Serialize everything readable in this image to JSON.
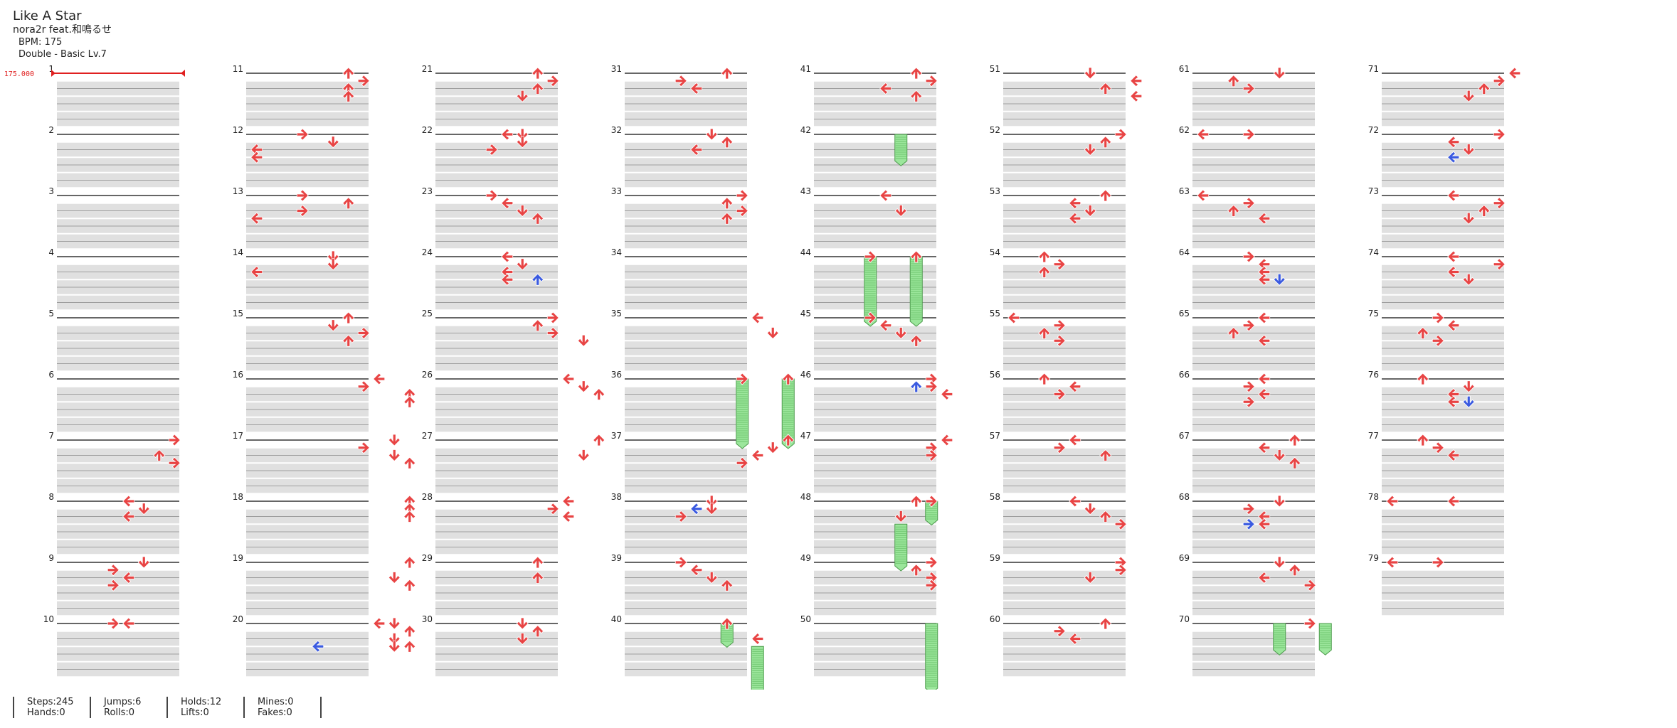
{
  "song": {
    "title": "Like A Star",
    "artist": "nora2r feat.和鳴るせ",
    "bpm_label": "BPM: 175",
    "difficulty_label": "Double - Basic Lv.7"
  },
  "chart_data": {
    "type": "dance-step-chart",
    "mode": "Double",
    "difficulty": "Basic",
    "level": 7,
    "bpm": 175,
    "bpm_marker_label": "175.000",
    "measure_count": 79,
    "measures_per_column": 10,
    "columns": 8,
    "lanes": [
      "P1-left",
      "P1-down",
      "P1-up",
      "P1-right",
      "P2-left",
      "P2-down",
      "P2-up",
      "P2-right"
    ],
    "colors": {
      "quarter": "#e84444",
      "eighth": "#3a5ae0",
      "hold": "#9be69b",
      "bpm_marker": "#e02020",
      "row_shade": "#e0e0e0"
    },
    "notes": [
      [
        7,
        0,
        7
      ],
      [
        7,
        0.25,
        6
      ],
      [
        7,
        0.375,
        7
      ],
      [
        8,
        0,
        4
      ],
      [
        8,
        0.125,
        5
      ],
      [
        8,
        0.25,
        4
      ],
      [
        9,
        0,
        5
      ],
      [
        9,
        0.125,
        3
      ],
      [
        9,
        0.25,
        4
      ],
      [
        9,
        0.375,
        3
      ],
      [
        10,
        0,
        3
      ],
      [
        10,
        0,
        4
      ],
      [
        11,
        0,
        6
      ],
      [
        11,
        0.125,
        7
      ],
      [
        11,
        0.25,
        6
      ],
      [
        11,
        0.375,
        6
      ],
      [
        12,
        0,
        3
      ],
      [
        12,
        0.125,
        5
      ],
      [
        12,
        0.25,
        0
      ],
      [
        12,
        0.375,
        0
      ],
      [
        13,
        0,
        3
      ],
      [
        13,
        0.125,
        6
      ],
      [
        13,
        0.25,
        3
      ],
      [
        13,
        0.375,
        0
      ],
      [
        14,
        0,
        5
      ],
      [
        14,
        0.125,
        5
      ],
      [
        14,
        0.25,
        0
      ],
      [
        15,
        0,
        6
      ],
      [
        15,
        0.125,
        5
      ],
      [
        15,
        0.25,
        7
      ],
      [
        15,
        0.375,
        6
      ],
      [
        16,
        0,
        8
      ],
      [
        16,
        0.125,
        7
      ],
      [
        16,
        0.25,
        10
      ],
      [
        16,
        0.375,
        10
      ],
      [
        17,
        0,
        9
      ],
      [
        17,
        0.125,
        7
      ],
      [
        17,
        0.25,
        9
      ],
      [
        17,
        0.375,
        10
      ],
      [
        18,
        0,
        10
      ],
      [
        18,
        0.125,
        10
      ],
      [
        18,
        0.25,
        10
      ],
      [
        19,
        0,
        10
      ],
      [
        19,
        0.25,
        9
      ],
      [
        19,
        0.375,
        10
      ],
      [
        20,
        0,
        8
      ],
      [
        20,
        0,
        9
      ],
      [
        20,
        0.125,
        10
      ],
      [
        20,
        0.25,
        9
      ],
      [
        20,
        0.375,
        9
      ],
      [
        20,
        0.375,
        10
      ],
      [
        21,
        0,
        6
      ],
      [
        21,
        0.125,
        7
      ],
      [
        21,
        0.25,
        6
      ],
      [
        21,
        0.375,
        5
      ],
      [
        22,
        0,
        5
      ],
      [
        22,
        0,
        4
      ],
      [
        22,
        0.125,
        5
      ],
      [
        22,
        0.25,
        3
      ],
      [
        23,
        0,
        3
      ],
      [
        23,
        0.125,
        4
      ],
      [
        23,
        0.25,
        5
      ],
      [
        23,
        0.375,
        6
      ],
      [
        24,
        0,
        4
      ],
      [
        24,
        0.125,
        5
      ],
      [
        24,
        0.25,
        4
      ],
      [
        24,
        0.375,
        4
      ],
      [
        25,
        0,
        7
      ],
      [
        25,
        0.125,
        6
      ],
      [
        25,
        0.25,
        7
      ],
      [
        25,
        0.375,
        9
      ],
      [
        26,
        0,
        8
      ],
      [
        26,
        0.125,
        9
      ],
      [
        26,
        0.25,
        10
      ],
      [
        27,
        0,
        10
      ],
      [
        27,
        0.25,
        9
      ],
      [
        28,
        0,
        8
      ],
      [
        28,
        0.125,
        7
      ],
      [
        28,
        0.25,
        8
      ],
      [
        29,
        0,
        6
      ],
      [
        29,
        0.25,
        6
      ],
      [
        30,
        0,
        5
      ],
      [
        30,
        0.125,
        6
      ],
      [
        30,
        0.25,
        5
      ],
      [
        31,
        0,
        6
      ],
      [
        31,
        0.125,
        3
      ],
      [
        31,
        0.25,
        4
      ],
      [
        32,
        0,
        5
      ],
      [
        32,
        0.125,
        6
      ],
      [
        32,
        0.25,
        4
      ],
      [
        33,
        0,
        7
      ],
      [
        33,
        0.125,
        6
      ],
      [
        33,
        0.25,
        7
      ],
      [
        33,
        0.375,
        6
      ],
      [
        35,
        0,
        8
      ],
      [
        35,
        0.25,
        9
      ],
      [
        36,
        0,
        7
      ],
      [
        36,
        0,
        10
      ],
      [
        37,
        0,
        10
      ],
      [
        37,
        0.125,
        9
      ],
      [
        37,
        0.25,
        8
      ],
      [
        37,
        0.375,
        7
      ],
      [
        38,
        0,
        5
      ],
      [
        38,
        0.125,
        5
      ],
      [
        38,
        0.25,
        3
      ],
      [
        39,
        0,
        3
      ],
      [
        39,
        0.125,
        4
      ],
      [
        39,
        0.25,
        5
      ],
      [
        39,
        0.375,
        6
      ],
      [
        40,
        0,
        6
      ],
      [
        40,
        0.25,
        8
      ],
      [
        41,
        0,
        6
      ],
      [
        41,
        0.125,
        7
      ],
      [
        41,
        0.25,
        4
      ],
      [
        41,
        0.375,
        6
      ],
      [
        43,
        0,
        4
      ],
      [
        43,
        0.25,
        5
      ],
      [
        44,
        0,
        3
      ],
      [
        44,
        0,
        6
      ],
      [
        45,
        0,
        3
      ],
      [
        45,
        0.125,
        4
      ],
      [
        45,
        0.25,
        5
      ],
      [
        45,
        0.375,
        6
      ],
      [
        46,
        0,
        7
      ],
      [
        46,
        0.125,
        7
      ],
      [
        46,
        0.25,
        8
      ],
      [
        47,
        0,
        8
      ],
      [
        47,
        0.125,
        7
      ],
      [
        47,
        0.25,
        7
      ],
      [
        48,
        0,
        6
      ],
      [
        48,
        0,
        7
      ],
      [
        48,
        0.25,
        5
      ],
      [
        49,
        0,
        7
      ],
      [
        49,
        0.125,
        6
      ],
      [
        49,
        0.25,
        7
      ],
      [
        49,
        0.375,
        7
      ],
      [
        51,
        0,
        5
      ],
      [
        51,
        0.125,
        8
      ],
      [
        51,
        0.25,
        6
      ],
      [
        51,
        0.375,
        8
      ],
      [
        52,
        0,
        7
      ],
      [
        52,
        0.125,
        6
      ],
      [
        52,
        0.25,
        5
      ],
      [
        53,
        0,
        6
      ],
      [
        53,
        0.125,
        4
      ],
      [
        53,
        0.25,
        5
      ],
      [
        53,
        0.375,
        4
      ],
      [
        54,
        0,
        2
      ],
      [
        54,
        0.125,
        3
      ],
      [
        54,
        0.25,
        2
      ],
      [
        55,
        0,
        0
      ],
      [
        55,
        0.125,
        3
      ],
      [
        55,
        0.25,
        2
      ],
      [
        55,
        0.375,
        3
      ],
      [
        56,
        0,
        2
      ],
      [
        56,
        0.125,
        4
      ],
      [
        56,
        0.25,
        3
      ],
      [
        57,
        0,
        4
      ],
      [
        57,
        0.125,
        3
      ],
      [
        57,
        0.25,
        6
      ],
      [
        58,
        0,
        4
      ],
      [
        58,
        0.125,
        5
      ],
      [
        58,
        0.25,
        6
      ],
      [
        58,
        0.375,
        7
      ],
      [
        59,
        0,
        7
      ],
      [
        59,
        0.125,
        7
      ],
      [
        59,
        0.25,
        5
      ],
      [
        60,
        0,
        6
      ],
      [
        60,
        0.125,
        3
      ],
      [
        60,
        0.25,
        4
      ],
      [
        61,
        0,
        5
      ],
      [
        61,
        0.125,
        2
      ],
      [
        61,
        0.25,
        3
      ],
      [
        62,
        0,
        0
      ],
      [
        62,
        0,
        0
      ],
      [
        62,
        0,
        3
      ],
      [
        63,
        0,
        0
      ],
      [
        63,
        0.125,
        3
      ],
      [
        63,
        0.25,
        2
      ],
      [
        63,
        0.375,
        4
      ],
      [
        64,
        0,
        3
      ],
      [
        64,
        0.125,
        4
      ],
      [
        64,
        0.25,
        4
      ],
      [
        64,
        0.375,
        4
      ],
      [
        65,
        0,
        4
      ],
      [
        65,
        0.125,
        3
      ],
      [
        65,
        0.25,
        2
      ],
      [
        65,
        0.375,
        4
      ],
      [
        66,
        0,
        4
      ],
      [
        66,
        0.125,
        3
      ],
      [
        66,
        0.25,
        4
      ],
      [
        66,
        0.375,
        3
      ],
      [
        67,
        0,
        6
      ],
      [
        67,
        0.125,
        4
      ],
      [
        67,
        0.25,
        5
      ],
      [
        67,
        0.375,
        6
      ],
      [
        68,
        0,
        5
      ],
      [
        68,
        0.125,
        3
      ],
      [
        68,
        0.25,
        4
      ],
      [
        68,
        0.375,
        4
      ],
      [
        69,
        0,
        5
      ],
      [
        69,
        0.125,
        6
      ],
      [
        69,
        0.25,
        4
      ],
      [
        69,
        0.375,
        7
      ],
      [
        70,
        0,
        7
      ],
      [
        71,
        0,
        8
      ],
      [
        71,
        0.125,
        7
      ],
      [
        71,
        0.25,
        6
      ],
      [
        71,
        0.375,
        5
      ],
      [
        72,
        0,
        7
      ],
      [
        72,
        0.125,
        4
      ],
      [
        72,
        0.25,
        5
      ],
      [
        72,
        0.375,
        4
      ],
      [
        73,
        0,
        4
      ],
      [
        73,
        0.125,
        7
      ],
      [
        73,
        0.25,
        6
      ],
      [
        73,
        0.375,
        5
      ],
      [
        74,
        0,
        4
      ],
      [
        74,
        0.125,
        7
      ],
      [
        74,
        0.25,
        4
      ],
      [
        74,
        0.375,
        5
      ],
      [
        75,
        0,
        3
      ],
      [
        75,
        0.125,
        4
      ],
      [
        75,
        0.25,
        2
      ],
      [
        75,
        0.375,
        3
      ],
      [
        76,
        0,
        2
      ],
      [
        76,
        0.125,
        5
      ],
      [
        76,
        0.25,
        4
      ],
      [
        76,
        0.375,
        4
      ],
      [
        77,
        0,
        2
      ],
      [
        77,
        0.125,
        3
      ],
      [
        77,
        0.25,
        4
      ],
      [
        78,
        0,
        0
      ],
      [
        78,
        0,
        4
      ],
      [
        79,
        0,
        0
      ],
      [
        79,
        0,
        3
      ]
    ],
    "eighth_notes": [
      [
        20,
        0.375,
        4
      ],
      [
        24,
        0.375,
        6
      ],
      [
        38,
        0.125,
        4
      ],
      [
        46,
        0.125,
        6
      ],
      [
        64,
        0.375,
        5
      ],
      [
        68,
        0.375,
        3
      ],
      [
        72,
        0.375,
        4
      ],
      [
        76,
        0.375,
        5
      ]
    ],
    "holds": [
      [
        36,
        0,
        7,
        37,
        0
      ],
      [
        36,
        0,
        10,
        37,
        0
      ],
      [
        40,
        0,
        6,
        40,
        0.25
      ],
      [
        40,
        0.375,
        8,
        41,
        0
      ],
      [
        42,
        0,
        5,
        42,
        0.375
      ],
      [
        44,
        0,
        3,
        45,
        0
      ],
      [
        44,
        0,
        6,
        45,
        0
      ],
      [
        48,
        0,
        7,
        48,
        0.25
      ],
      [
        48,
        0.375,
        5,
        49,
        0
      ],
      [
        50,
        0,
        7,
        51,
        0
      ],
      [
        70,
        0,
        5,
        70,
        0.375
      ],
      [
        70,
        0,
        8,
        70,
        0.375
      ]
    ]
  },
  "stats": [
    {
      "line1": "Steps:245",
      "line2": "Hands:0"
    },
    {
      "line1": "Jumps:6",
      "line2": "Rolls:0"
    },
    {
      "line1": "Holds:12",
      "line2": "Lifts:0"
    },
    {
      "line1": "Mines:0",
      "line2": "Fakes:0"
    }
  ]
}
